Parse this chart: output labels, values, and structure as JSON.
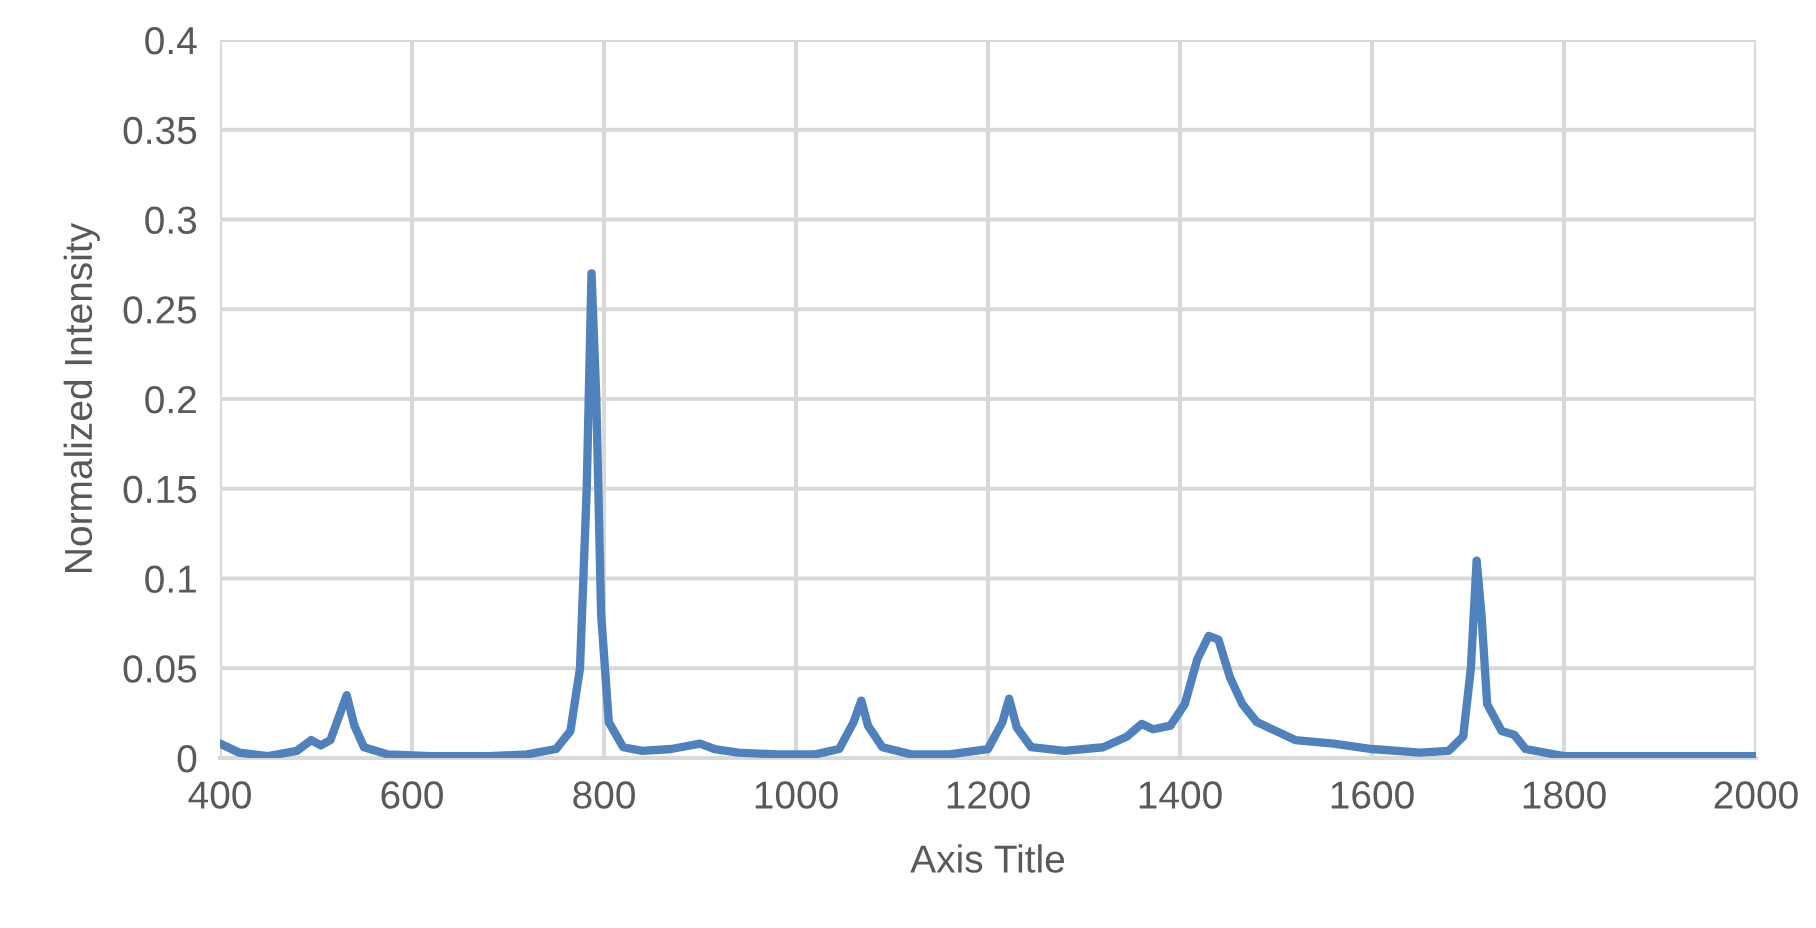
{
  "chart_data": {
    "type": "line",
    "xlabel": "Axis Title",
    "ylabel": "Normalized Intensity",
    "xlim": [
      400,
      2000
    ],
    "xticks": [
      400,
      600,
      800,
      1000,
      1200,
      1400,
      1600,
      1800,
      2000
    ],
    "ylim": [
      0,
      0.4
    ],
    "yticks": [
      0,
      0.05,
      0.1,
      0.15,
      0.2,
      0.25,
      0.3,
      0.35,
      0.4
    ],
    "grid": true,
    "marker": "none",
    "line_style": "solid",
    "series": [
      {
        "color": "#4f81bd",
        "x": [
          400,
          420,
          450,
          480,
          495,
          505,
          515,
          532,
          540,
          550,
          575,
          620,
          680,
          720,
          750,
          765,
          775,
          782,
          787,
          792,
          797,
          805,
          820,
          840,
          870,
          900,
          915,
          940,
          980,
          1020,
          1045,
          1060,
          1068,
          1075,
          1090,
          1120,
          1160,
          1200,
          1215,
          1222,
          1230,
          1245,
          1280,
          1320,
          1345,
          1360,
          1372,
          1390,
          1405,
          1418,
          1430,
          1440,
          1452,
          1465,
          1480,
          1500,
          1520,
          1560,
          1600,
          1650,
          1680,
          1695,
          1703,
          1709,
          1714,
          1720,
          1735,
          1748,
          1760,
          1800,
          1850,
          1900,
          1950,
          2000
        ],
        "values": [
          0.008,
          0.003,
          0.001,
          0.004,
          0.01,
          0.007,
          0.01,
          0.035,
          0.018,
          0.006,
          0.002,
          0.001,
          0.001,
          0.002,
          0.005,
          0.015,
          0.05,
          0.15,
          0.27,
          0.2,
          0.08,
          0.02,
          0.006,
          0.004,
          0.005,
          0.008,
          0.005,
          0.003,
          0.002,
          0.002,
          0.005,
          0.02,
          0.032,
          0.018,
          0.006,
          0.002,
          0.002,
          0.005,
          0.02,
          0.033,
          0.017,
          0.006,
          0.004,
          0.006,
          0.012,
          0.019,
          0.016,
          0.018,
          0.03,
          0.055,
          0.068,
          0.066,
          0.045,
          0.03,
          0.02,
          0.015,
          0.01,
          0.008,
          0.005,
          0.003,
          0.004,
          0.012,
          0.05,
          0.11,
          0.08,
          0.03,
          0.015,
          0.013,
          0.005,
          0.001,
          0.001,
          0.001,
          0.001,
          0.001
        ]
      }
    ]
  }
}
